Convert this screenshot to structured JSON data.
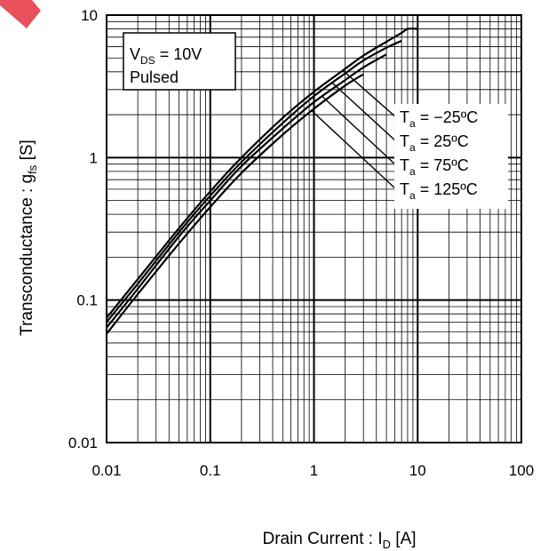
{
  "chart_data": {
    "type": "line",
    "xlabel": {
      "main": "Drain Current : I",
      "sub": "D",
      "unit": " [A]"
    },
    "ylabel": {
      "main": "Transconductance : g",
      "sub": "fs",
      "unit": " [S]"
    },
    "x_scale": "log",
    "y_scale": "log",
    "xlim": [
      0.01,
      100
    ],
    "ylim": [
      0.01,
      10
    ],
    "x_ticks": [
      0.01,
      0.1,
      1,
      10,
      100
    ],
    "x_tick_labels": [
      "0.01",
      "0.1",
      "1",
      "10",
      "100"
    ],
    "y_ticks": [
      0.01,
      0.1,
      1,
      10
    ],
    "y_tick_labels": [
      "0.01",
      "0.1",
      "1",
      "10"
    ],
    "grid": true,
    "conditions": {
      "vds_prefix": "V",
      "vds_sub": "DS",
      "vds_value": " = 10V",
      "mode": "Pulsed"
    },
    "series": [
      {
        "name": "T_a = −25ºC",
        "label_main": "T",
        "label_sub": "a",
        "label_value": " = −25ºC",
        "x": [
          0.01,
          0.02,
          0.05,
          0.1,
          0.2,
          0.5,
          1,
          2,
          3,
          5,
          7,
          8,
          10
        ],
        "y": [
          0.075,
          0.14,
          0.32,
          0.58,
          1.0,
          1.9,
          2.9,
          4.2,
          5.2,
          6.5,
          7.5,
          8.0,
          8.0
        ]
      },
      {
        "name": "T_a = 25ºC",
        "label_main": "T",
        "label_sub": "a",
        "label_value": " = 25ºC",
        "x": [
          0.01,
          0.02,
          0.05,
          0.1,
          0.2,
          0.5,
          1,
          2,
          3,
          5,
          7
        ],
        "y": [
          0.07,
          0.13,
          0.3,
          0.54,
          0.93,
          1.75,
          2.7,
          3.9,
          4.8,
          5.9,
          6.6
        ]
      },
      {
        "name": "T_a = 75ºC",
        "label_main": "T",
        "label_sub": "a",
        "label_value": " = 75ºC",
        "x": [
          0.01,
          0.02,
          0.05,
          0.1,
          0.2,
          0.5,
          1,
          2,
          3,
          5
        ],
        "y": [
          0.064,
          0.12,
          0.28,
          0.5,
          0.87,
          1.6,
          2.45,
          3.5,
          4.3,
          5.3
        ]
      },
      {
        "name": "T_a = 125ºC",
        "label_main": "T",
        "label_sub": "a",
        "label_value": " = 125ºC",
        "x": [
          0.01,
          0.02,
          0.05,
          0.1,
          0.2,
          0.5,
          1,
          2,
          3
        ],
        "y": [
          0.058,
          0.11,
          0.25,
          0.45,
          0.78,
          1.45,
          2.2,
          3.2,
          3.85
        ]
      }
    ]
  },
  "decor": {
    "corner_mark_color": "#e8505b"
  }
}
